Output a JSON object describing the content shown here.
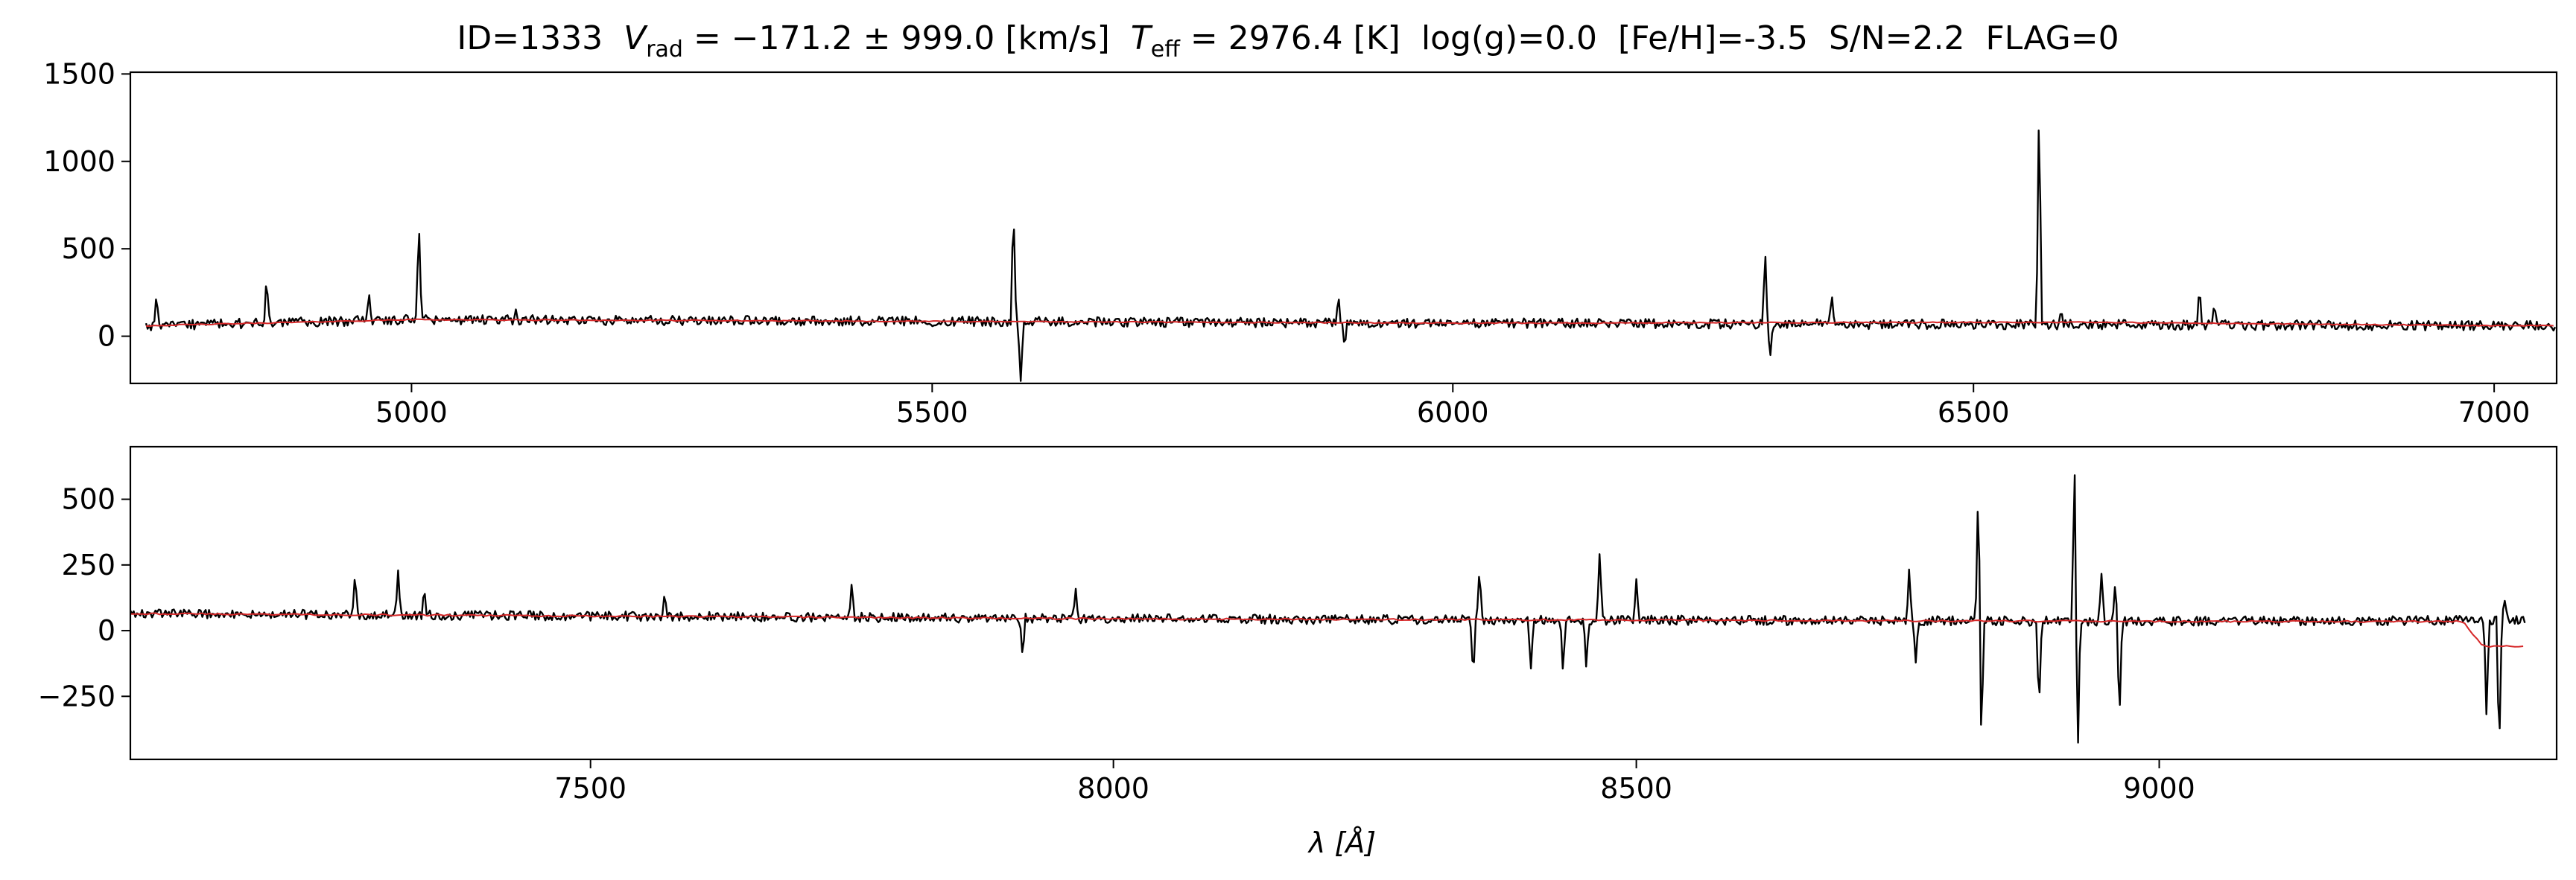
{
  "title": {
    "id": "ID=1333",
    "vrad_symbol": "V",
    "vrad_sub": "rad",
    "vrad_value": " = −171.2 ± 999.0 [km/s]",
    "teff_symbol": "T",
    "teff_sub": "eff",
    "teff_value": " = 2976.4 [K]",
    "logg": "log(g)=0.0",
    "feh": "[Fe/H]=-3.5",
    "sn": "S/N=2.2",
    "flag": "FLAG=0"
  },
  "xlabel": "λ [Å]",
  "colors": {
    "observed": "#000000",
    "model": "#d62728"
  },
  "chart_data": [
    {
      "type": "line",
      "xlim": [
        4730,
        7060
      ],
      "ylim": [
        -270,
        1510
      ],
      "xticks": [
        5000,
        5500,
        6000,
        6500,
        7000
      ],
      "yticks": [
        0,
        500,
        1000,
        1500
      ],
      "xticklabels": [
        "5000",
        "5500",
        "6000",
        "6500",
        "7000"
      ],
      "yticklabels": [
        "0",
        "500",
        "1000",
        "1500"
      ],
      "noise": 28,
      "series": [
        {
          "role": "observed",
          "start": 4745,
          "end": 7060,
          "baseline": [
            [
              4745,
              60
            ],
            [
              5000,
              95
            ],
            [
              6000,
              75
            ],
            [
              7000,
              60
            ]
          ]
        },
        {
          "role": "model",
          "start": 4745,
          "end": 7060,
          "baseline": [
            [
              4745,
              60
            ],
            [
              5000,
              95
            ],
            [
              6000,
              75
            ],
            [
              6600,
              80
            ],
            [
              7000,
              60
            ]
          ]
        }
      ],
      "features": [
        [
          4755,
          210
        ],
        [
          4861,
          340
        ],
        [
          4959,
          230
        ],
        [
          5007,
          670
        ],
        [
          5100,
          150
        ],
        [
          5578,
          760
        ],
        [
          5585,
          -270
        ],
        [
          5890,
          260
        ],
        [
          5896,
          -60
        ],
        [
          6300,
          470
        ],
        [
          6305,
          -130
        ],
        [
          6364,
          250
        ],
        [
          6563,
          1370
        ],
        [
          6584,
          180
        ],
        [
          6717,
          260
        ],
        [
          6731,
          200
        ]
      ]
    },
    {
      "type": "line",
      "xlim": [
        7060,
        9380
      ],
      "ylim": [
        -490,
        700
      ],
      "xticks": [
        7500,
        8000,
        8500,
        9000
      ],
      "yticks": [
        -250,
        0,
        250,
        500
      ],
      "xticklabels": [
        "7500",
        "8000",
        "8500",
        "9000"
      ],
      "yticklabels": [
        "−250",
        "0",
        "250",
        "500"
      ],
      "noise": 18,
      "series": [
        {
          "role": "observed",
          "start": 7060,
          "end": 9350,
          "baseline": [
            [
              7060,
              65
            ],
            [
              8000,
              45
            ],
            [
              9000,
              35
            ],
            [
              9350,
              40
            ]
          ]
        },
        {
          "role": "model",
          "start": 7060,
          "end": 9350,
          "baseline": [
            [
              7060,
              65
            ],
            [
              8000,
              45
            ],
            [
              9000,
              35
            ],
            [
              9290,
              35
            ],
            [
              9310,
              -60
            ],
            [
              9350,
              -60
            ]
          ]
        }
      ],
      "features": [
        [
          7275,
          210
        ],
        [
          7316,
          240
        ],
        [
          7341,
          150
        ],
        [
          7571,
          160
        ],
        [
          7750,
          180
        ],
        [
          7913,
          -110
        ],
        [
          7964,
          150
        ],
        [
          8344,
          -170
        ],
        [
          8350,
          230
        ],
        [
          8399,
          -150
        ],
        [
          8430,
          -160
        ],
        [
          8452,
          -140
        ],
        [
          8465,
          300
        ],
        [
          8500,
          180
        ],
        [
          8761,
          240
        ],
        [
          8767,
          -120
        ],
        [
          8827,
          570
        ],
        [
          8830,
          -440
        ],
        [
          8885,
          -300
        ],
        [
          8919,
          640
        ],
        [
          8922,
          -490
        ],
        [
          8945,
          240
        ],
        [
          8958,
          170
        ],
        [
          8962,
          -350
        ],
        [
          9313,
          -340
        ],
        [
          9325,
          -490
        ],
        [
          9330,
          120
        ]
      ]
    }
  ]
}
